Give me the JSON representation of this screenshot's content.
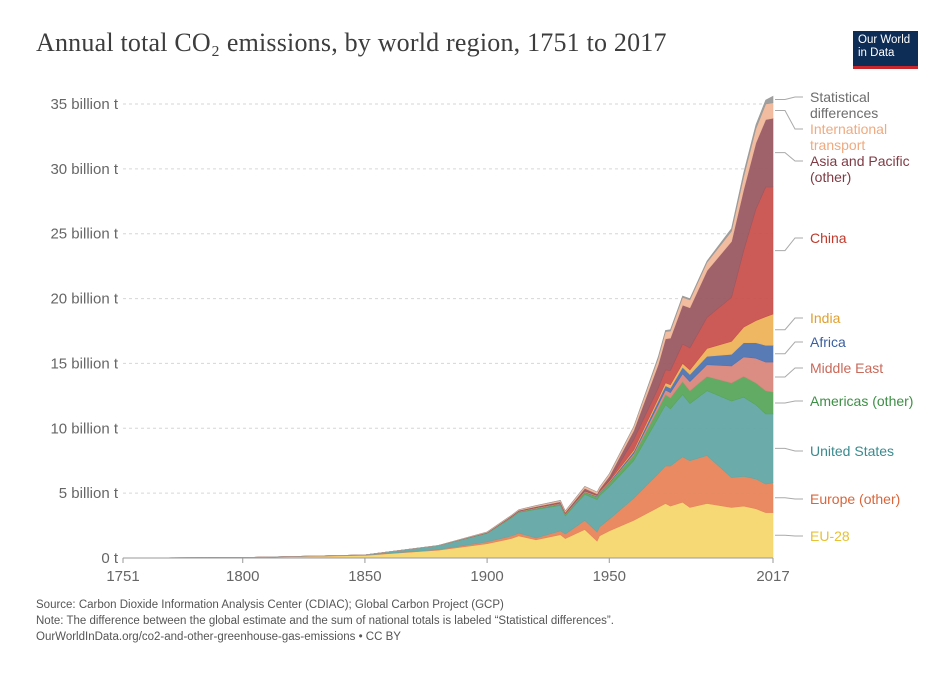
{
  "header": {
    "title": "Annual total CO₂ emissions, by world region, 1751 to 2017",
    "logo_line1": "Our World",
    "logo_line2": "in Data"
  },
  "footer": {
    "source": "Source: Carbon Dioxide Information Analysis Center (CDIAC); Global Carbon Project (GCP)",
    "note": "Note: The difference between the global estimate and the sum of national totals is labeled “Statistical differences”.",
    "url": "OurWorldInData.org/co2-and-other-greenhouse-gas-emissions • CC BY"
  },
  "chart_data": {
    "type": "area",
    "stacked": true,
    "title": "Annual total CO₂ emissions, by world region, 1751 to 2017",
    "xlabel": "",
    "ylabel": "",
    "unit": "billion t",
    "xlim": [
      1751,
      2017
    ],
    "ylim": [
      0,
      35
    ],
    "grid": true,
    "x_ticks": [
      1751,
      1800,
      1850,
      1900,
      1950,
      2017
    ],
    "y_ticks": [
      0,
      5,
      10,
      15,
      20,
      25,
      30,
      35
    ],
    "y_tick_labels": [
      "0 t",
      "5 billion t",
      "10 billion t",
      "15 billion t",
      "20 billion t",
      "25 billion t",
      "30 billion t",
      "35 billion t"
    ],
    "x": [
      1751,
      1800,
      1850,
      1880,
      1900,
      1910,
      1913,
      1920,
      1930,
      1932,
      1940,
      1945,
      1946,
      1950,
      1960,
      1970,
      1973,
      1975,
      1980,
      1983,
      1990,
      2000,
      2005,
      2010,
      2014,
      2017
    ],
    "series": [
      {
        "name": "EU-28",
        "color": "#f5d76e",
        "values": [
          0.01,
          0.04,
          0.2,
          0.6,
          1.1,
          1.5,
          1.7,
          1.4,
          1.8,
          1.5,
          2.2,
          1.3,
          1.7,
          2.1,
          2.9,
          3.9,
          4.2,
          4.0,
          4.3,
          3.9,
          4.2,
          3.9,
          4.0,
          3.8,
          3.5,
          3.5
        ]
      },
      {
        "name": "Europe (other)",
        "color": "#e8845a",
        "values": [
          0.0,
          0.0,
          0.02,
          0.05,
          0.15,
          0.2,
          0.22,
          0.15,
          0.3,
          0.35,
          0.7,
          0.7,
          0.7,
          0.9,
          1.7,
          2.6,
          2.9,
          3.1,
          3.5,
          3.6,
          3.7,
          2.3,
          2.3,
          2.3,
          2.2,
          2.3
        ]
      },
      {
        "name": "United States",
        "color": "#63a8a5",
        "values": [
          0.0,
          0.0,
          0.02,
          0.3,
          0.65,
          1.4,
          1.6,
          2.2,
          1.95,
          1.4,
          2.0,
          2.5,
          2.4,
          2.5,
          2.9,
          4.3,
          4.7,
          4.4,
          4.8,
          4.4,
          5.0,
          5.9,
          6.1,
          5.7,
          5.4,
          5.3
        ]
      },
      {
        "name": "Americas (other)",
        "color": "#5aa65c",
        "values": [
          0.0,
          0.0,
          0.0,
          0.01,
          0.03,
          0.05,
          0.05,
          0.07,
          0.1,
          0.09,
          0.15,
          0.2,
          0.2,
          0.25,
          0.45,
          0.7,
          0.8,
          0.85,
          1.0,
          1.0,
          1.1,
          1.4,
          1.6,
          1.7,
          1.8,
          1.7
        ]
      },
      {
        "name": "Middle East",
        "color": "#d9877c",
        "values": [
          0.0,
          0.0,
          0.0,
          0.0,
          0.0,
          0.0,
          0.0,
          0.0,
          0.01,
          0.01,
          0.01,
          0.02,
          0.02,
          0.03,
          0.1,
          0.3,
          0.35,
          0.4,
          0.6,
          0.7,
          0.9,
          1.3,
          1.5,
          1.9,
          2.2,
          2.3
        ]
      },
      {
        "name": "Africa",
        "color": "#4f74b2",
        "values": [
          0.0,
          0.0,
          0.0,
          0.0,
          0.0,
          0.01,
          0.01,
          0.02,
          0.03,
          0.03,
          0.04,
          0.05,
          0.05,
          0.07,
          0.15,
          0.3,
          0.33,
          0.35,
          0.5,
          0.55,
          0.65,
          0.9,
          1.1,
          1.2,
          1.3,
          1.3
        ]
      },
      {
        "name": "India",
        "color": "#eeb35a",
        "values": [
          0.0,
          0.0,
          0.0,
          0.0,
          0.01,
          0.02,
          0.02,
          0.03,
          0.03,
          0.03,
          0.04,
          0.04,
          0.04,
          0.06,
          0.12,
          0.2,
          0.22,
          0.25,
          0.3,
          0.35,
          0.6,
          1.0,
          1.2,
          1.7,
          2.2,
          2.4
        ]
      },
      {
        "name": "China",
        "color": "#c9514d",
        "values": [
          0.0,
          0.0,
          0.0,
          0.0,
          0.0,
          0.01,
          0.01,
          0.01,
          0.02,
          0.02,
          0.03,
          0.03,
          0.04,
          0.08,
          0.8,
          0.8,
          1.0,
          1.1,
          1.5,
          1.7,
          2.4,
          3.4,
          5.9,
          8.6,
          10.0,
          9.8
        ]
      },
      {
        "name": "Asia and Pacific (other)",
        "color": "#9a5a62",
        "values": [
          0.0,
          0.0,
          0.0,
          0.0,
          0.04,
          0.06,
          0.07,
          0.08,
          0.1,
          0.1,
          0.2,
          0.1,
          0.15,
          0.3,
          0.7,
          1.8,
          2.4,
          2.5,
          3.0,
          3.1,
          3.6,
          4.3,
          4.7,
          5.1,
          5.2,
          5.3
        ]
      },
      {
        "name": "International transport",
        "color": "#f0b89a",
        "values": [
          0.0,
          0.0,
          0.0,
          0.01,
          0.03,
          0.05,
          0.05,
          0.08,
          0.1,
          0.1,
          0.15,
          0.15,
          0.15,
          0.2,
          0.3,
          0.5,
          0.55,
          0.55,
          0.6,
          0.6,
          0.65,
          0.8,
          1.0,
          1.1,
          1.2,
          1.2
        ]
      },
      {
        "name": "Statistical differences",
        "color": "#9a9a9a",
        "values": [
          0.0,
          0.0,
          0.0,
          0.0,
          0.0,
          0.0,
          0.0,
          0.0,
          0.0,
          0.0,
          0.0,
          0.0,
          0.0,
          0.0,
          0.0,
          0.1,
          0.1,
          0.1,
          0.1,
          0.1,
          0.1,
          0.2,
          0.3,
          0.3,
          0.3,
          0.5
        ]
      }
    ],
    "legend_labels": [
      {
        "lines": [
          "Statistical",
          "differences"
        ],
        "color": "#6d6d6d"
      },
      {
        "lines": [
          "International",
          "transport"
        ],
        "color": "#efaa80"
      },
      {
        "lines": [
          "Asia and Pacific",
          "(other)"
        ],
        "color": "#7e3b44"
      },
      {
        "lines": [
          "China"
        ],
        "color": "#c0392b"
      },
      {
        "lines": [
          "India"
        ],
        "color": "#e0a030"
      },
      {
        "lines": [
          "Africa"
        ],
        "color": "#3a5fa0"
      },
      {
        "lines": [
          "Middle East"
        ],
        "color": "#c96a5a"
      },
      {
        "lines": [
          "Americas (other)"
        ],
        "color": "#3d8f45"
      },
      {
        "lines": [
          "United States"
        ],
        "color": "#3b8a8e"
      },
      {
        "lines": [
          "Europe (other)"
        ],
        "color": "#d9653a"
      },
      {
        "lines": [
          "EU-28"
        ],
        "color": "#e8c033"
      }
    ],
    "legend_position": "right"
  }
}
